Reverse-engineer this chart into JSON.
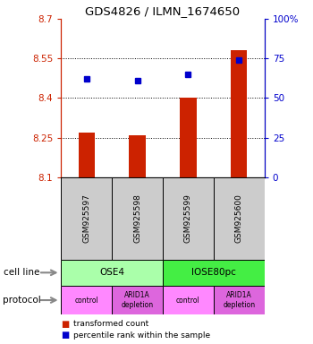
{
  "title": "GDS4826 / ILMN_1674650",
  "samples": [
    "GSM925597",
    "GSM925598",
    "GSM925599",
    "GSM925600"
  ],
  "bar_values": [
    8.27,
    8.26,
    8.4,
    8.58
  ],
  "dot_values": [
    62,
    61,
    65,
    74
  ],
  "ymin": 8.1,
  "ymax": 8.7,
  "yticks": [
    8.1,
    8.25,
    8.4,
    8.55,
    8.7
  ],
  "ytick_labels": [
    "8.1",
    "8.25",
    "8.4",
    "8.55",
    "8.7"
  ],
  "y2ticks": [
    0,
    25,
    50,
    75,
    100
  ],
  "y2tick_labels": [
    "0",
    "25",
    "50",
    "75",
    "100%"
  ],
  "bar_color": "#cc2200",
  "dot_color": "#0000cc",
  "bar_base": 8.1,
  "cell_lines": [
    {
      "label": "OSE4",
      "span": [
        0,
        2
      ],
      "color": "#aaffaa"
    },
    {
      "label": "IOSE80pc",
      "span": [
        2,
        4
      ],
      "color": "#44ee44"
    }
  ],
  "protocols": [
    {
      "label": "control",
      "span": [
        0,
        1
      ],
      "color": "#ff88ff"
    },
    {
      "label": "ARID1A\ndepletion",
      "span": [
        1,
        2
      ],
      "color": "#dd66dd"
    },
    {
      "label": "control",
      "span": [
        2,
        3
      ],
      "color": "#ff88ff"
    },
    {
      "label": "ARID1A\ndepletion",
      "span": [
        3,
        4
      ],
      "color": "#dd66dd"
    }
  ],
  "sample_box_color": "#cccccc",
  "legend_bar_label": "transformed count",
  "legend_dot_label": "percentile rank within the sample",
  "cell_line_label": "cell line",
  "protocol_label": "protocol",
  "left_axis_color": "#cc2200",
  "right_axis_color": "#0000cc"
}
